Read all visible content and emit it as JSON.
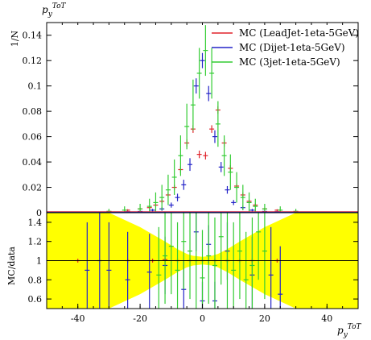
{
  "chart_data": [
    {
      "type": "scatter",
      "panel": "main",
      "ylabel": "1/N",
      "title": "p_y^ToT",
      "xlim": [
        -50,
        50
      ],
      "ylim": [
        0,
        0.15
      ],
      "yticks": [
        0,
        0.02,
        0.04,
        0.06,
        0.08,
        0.1,
        0.12,
        0.14
      ],
      "ytick_labels": [
        "0",
        "0.02",
        "0.04",
        "0.06",
        "0.08",
        "0.1",
        "0.12",
        "0.14"
      ],
      "legend": {
        "placement": "top-right"
      },
      "series": [
        {
          "name": "MC (LeadJet-1eta-5GeV)",
          "color": "#e0242b",
          "x": [
            -30,
            -24,
            -20,
            -17,
            -15,
            -13,
            -11,
            -9,
            -7,
            -5,
            -3,
            -1,
            1,
            3,
            5,
            7,
            9,
            11,
            13,
            15,
            17,
            20,
            24,
            30
          ],
          "y": [
            0.001,
            0.002,
            0.003,
            0.004,
            0.006,
            0.009,
            0.014,
            0.02,
            0.034,
            0.055,
            0.066,
            0.046,
            0.045,
            0.066,
            0.081,
            0.055,
            0.035,
            0.021,
            0.014,
            0.009,
            0.006,
            0.003,
            0.002,
            0.001
          ],
          "err": [
            0.0005,
            0.0007,
            0.0008,
            0.001,
            0.0012,
            0.0015,
            0.0018,
            0.002,
            0.0025,
            0.003,
            0.003,
            0.003,
            0.003,
            0.003,
            0.003,
            0.003,
            0.0025,
            0.002,
            0.0018,
            0.0015,
            0.0012,
            0.0008,
            0.0007,
            0.0005
          ]
        },
        {
          "name": "MC (Dijet-1eta-5GeV)",
          "color": "#2323c8",
          "x": [
            -30,
            -24,
            -20,
            -16,
            -13,
            -10,
            -8,
            -6,
            -4,
            -2,
            0,
            2,
            4,
            6,
            8,
            10,
            13,
            16,
            20,
            24,
            30
          ],
          "y": [
            0.0005,
            0.0008,
            0.001,
            0.002,
            0.003,
            0.006,
            0.012,
            0.022,
            0.038,
            0.1,
            0.12,
            0.094,
            0.06,
            0.036,
            0.018,
            0.008,
            0.004,
            0.002,
            0.001,
            0.0008,
            0.0005
          ],
          "err": [
            0.0003,
            0.0004,
            0.0005,
            0.001,
            0.0015,
            0.002,
            0.003,
            0.004,
            0.005,
            0.006,
            0.006,
            0.006,
            0.005,
            0.004,
            0.003,
            0.002,
            0.0015,
            0.001,
            0.0005,
            0.0004,
            0.0003
          ]
        },
        {
          "name": "MC (3jet-1eta-5GeV)",
          "color": "#33cc33",
          "x": [
            -30,
            -25,
            -20,
            -17,
            -15,
            -13,
            -11,
            -9,
            -7,
            -5,
            -3,
            -1,
            1,
            3,
            5,
            7,
            9,
            11,
            13,
            15,
            17,
            20,
            25,
            30
          ],
          "y": [
            0.001,
            0.002,
            0.003,
            0.005,
            0.008,
            0.012,
            0.018,
            0.028,
            0.045,
            0.068,
            0.085,
            0.11,
            0.128,
            0.11,
            0.07,
            0.045,
            0.032,
            0.02,
            0.012,
            0.008,
            0.005,
            0.003,
            0.002,
            0.001
          ],
          "err": [
            0.002,
            0.003,
            0.004,
            0.006,
            0.008,
            0.01,
            0.012,
            0.014,
            0.016,
            0.018,
            0.02,
            0.02,
            0.02,
            0.02,
            0.018,
            0.016,
            0.014,
            0.012,
            0.01,
            0.008,
            0.006,
            0.004,
            0.003,
            0.002
          ]
        }
      ]
    },
    {
      "type": "scatter",
      "panel": "ratio",
      "ylabel": "MC/data",
      "xlabel": "p_y^ToT",
      "xlim": [
        -50,
        50
      ],
      "ylim": [
        0.5,
        1.5
      ],
      "xticks": [
        -40,
        -20,
        0,
        20,
        40
      ],
      "xtick_labels": [
        "-40",
        "-20",
        "0",
        "20",
        "40"
      ],
      "yticks": [
        0.6,
        0.8,
        1,
        1.2,
        1.4
      ],
      "ytick_labels": [
        "0.6",
        "0.8",
        "1",
        "1.2",
        "1.4"
      ],
      "reference_line": 1,
      "band_color": "#ffff00",
      "band_x": [
        -50,
        -30,
        -20,
        -12,
        -8,
        -5,
        -3,
        0,
        3,
        5,
        8,
        12,
        20,
        30,
        50
      ],
      "band_half_width": [
        0.5,
        0.5,
        0.35,
        0.2,
        0.12,
        0.07,
        0.05,
        0.04,
        0.05,
        0.07,
        0.12,
        0.2,
        0.35,
        0.5,
        0.5
      ],
      "series": [
        {
          "name": "MC (LeadJet-1eta-5GeV)",
          "color": "#e0242b",
          "x": [
            -40,
            -24,
            -16,
            -12,
            -8,
            -4,
            0,
            4,
            8,
            12,
            16,
            24
          ],
          "y": [
            1.0,
            1.0,
            1.0,
            1.01,
            1.0,
            1.0,
            1.0,
            1.0,
            1.0,
            1.0,
            1.0,
            1.0
          ],
          "err": [
            0.02,
            0.02,
            0.02,
            0.02,
            0.02,
            0.02,
            0.02,
            0.02,
            0.02,
            0.02,
            0.02,
            0.02
          ]
        },
        {
          "name": "MC (Dijet-1eta-5GeV)",
          "color": "#2323c8",
          "x": [
            -37,
            -33,
            -30,
            -24,
            -17,
            -12,
            -6,
            -2,
            0,
            2,
            4,
            8,
            16,
            22,
            25
          ],
          "y": [
            0.9,
            1.0,
            0.9,
            0.8,
            0.88,
            0.95,
            0.7,
            1.3,
            0.58,
            1.17,
            0.58,
            1.1,
            0.85,
            0.85,
            0.65
          ],
          "err": [
            0.5,
            0.5,
            0.5,
            0.5,
            0.4,
            0.3,
            0.3,
            0.2,
            0.2,
            0.2,
            0.2,
            0.3,
            0.4,
            0.5,
            0.5
          ]
        },
        {
          "name": "MC (3jet-1eta-5GeV)",
          "color": "#33cc33",
          "x": [
            -14,
            -12,
            -10,
            -8,
            -6,
            -4,
            -2,
            0,
            2,
            4,
            6,
            8,
            10,
            12,
            14,
            16,
            18,
            20
          ],
          "y": [
            0.85,
            1.05,
            1.15,
            0.9,
            1.2,
            1.1,
            1.0,
            0.82,
            1.05,
            0.95,
            1.25,
            1.0,
            0.9,
            1.1,
            0.8,
            0.95,
            1.3,
            1.1
          ],
          "err": [
            0.5,
            0.5,
            0.5,
            0.5,
            0.5,
            0.5,
            0.5,
            0.5,
            0.5,
            0.5,
            0.5,
            0.5,
            0.5,
            0.5,
            0.5,
            0.5,
            0.5,
            0.5
          ]
        }
      ]
    }
  ]
}
